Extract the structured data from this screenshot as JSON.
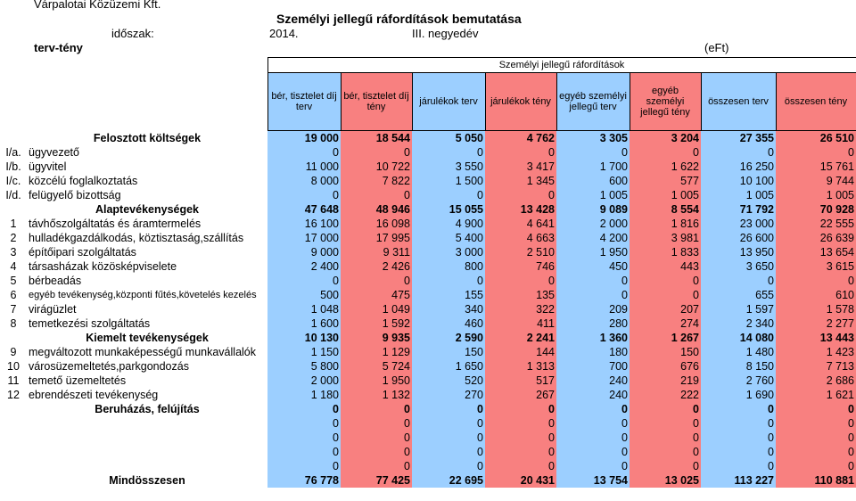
{
  "header": {
    "company": "Várpalotai Közüzemi Kft.",
    "title": "Személyi jellegű ráfordítások bemutatása",
    "period_label": "időszak:",
    "year": "2014.",
    "quarter": "III. negyedév",
    "plan_actual": "terv-tény",
    "unit": "(eFt)"
  },
  "table": {
    "caption": "Személyi jellegű ráfordítások",
    "columns": [
      "bér, tisztelet díj terv",
      "bér, tisztelet díj tény",
      "járulékok terv",
      "járulékok tény",
      "egyéb személyi jellegű terv",
      "egyéb személyi jellegű tény",
      "összesen terv",
      "összesen tény"
    ],
    "rows": [
      {
        "code": "",
        "label": "Felosztott költségek",
        "kind": "sec",
        "values": [
          "19 000",
          "18 544",
          "5 050",
          "4 762",
          "3 305",
          "3 204",
          "27 355",
          "26 510"
        ]
      },
      {
        "code": "I/a.",
        "label": "ügyvezető",
        "kind": "",
        "values": [
          "0",
          "0",
          "0",
          "0",
          "0",
          "0",
          "0",
          "0"
        ]
      },
      {
        "code": "I/b.",
        "label": "ügyvitel",
        "kind": "",
        "values": [
          "11 000",
          "10 722",
          "3 550",
          "3 417",
          "1 700",
          "1 622",
          "16 250",
          "15 761"
        ]
      },
      {
        "code": "I/c.",
        "label": "közcélú foglalkoztatás",
        "kind": "",
        "values": [
          "8 000",
          "7 822",
          "1 500",
          "1 345",
          "600",
          "577",
          "10 100",
          "9 744"
        ]
      },
      {
        "code": "I/d.",
        "label": "felügyelő bizottság",
        "kind": "",
        "values": [
          "0",
          "0",
          "0",
          "0",
          "1 005",
          "1 005",
          "1 005",
          "1 005"
        ]
      },
      {
        "code": "",
        "label": "Alaptevékenységek",
        "kind": "sec",
        "values": [
          "47 648",
          "48 946",
          "15 055",
          "13 428",
          "9 089",
          "8 554",
          "71 792",
          "70 928"
        ]
      },
      {
        "code": "1",
        "label": "távhőszolgáltatás és áramtermelés",
        "kind": "",
        "values": [
          "16 100",
          "16 098",
          "4 900",
          "4 641",
          "2 000",
          "1 816",
          "23 000",
          "22 555"
        ]
      },
      {
        "code": "2",
        "label": "hulladékgazdálkodás, köztisztaság,szállítás",
        "kind": "",
        "values": [
          "17 000",
          "17 995",
          "5 400",
          "4 663",
          "4 200",
          "3 981",
          "26 600",
          "26 639"
        ]
      },
      {
        "code": "3",
        "label": "építőipari szolgáltatás",
        "kind": "",
        "values": [
          "9 000",
          "9 311",
          "3 000",
          "2 510",
          "1 950",
          "1 833",
          "13 950",
          "13 654"
        ]
      },
      {
        "code": "4",
        "label": "társasházak közösképviselete",
        "kind": "",
        "values": [
          "2 400",
          "2 426",
          "800",
          "746",
          "450",
          "443",
          "3 650",
          "3 615"
        ]
      },
      {
        "code": "5",
        "label": "bérbeadás",
        "kind": "",
        "values": [
          "0",
          "0",
          "0",
          "0",
          "0",
          "0",
          "0",
          "0"
        ]
      },
      {
        "code": "6",
        "label": "egyéb tevékenység,központi fűtés,követelés kezelés",
        "kind": "small",
        "values": [
          "500",
          "475",
          "155",
          "135",
          "0",
          "0",
          "655",
          "610"
        ]
      },
      {
        "code": "7",
        "label": "virágüzlet",
        "kind": "",
        "values": [
          "1 048",
          "1 049",
          "340",
          "322",
          "209",
          "207",
          "1 597",
          "1 578"
        ]
      },
      {
        "code": "8",
        "label": "temetkezési szolgáltatás",
        "kind": "",
        "values": [
          "1 600",
          "1 592",
          "460",
          "411",
          "280",
          "274",
          "2 340",
          "2 277"
        ]
      },
      {
        "code": "",
        "label": "Kiemelt tevékenységek",
        "kind": "sec",
        "values": [
          "10 130",
          "9 935",
          "2 590",
          "2 241",
          "1 360",
          "1 267",
          "14 080",
          "13 443"
        ]
      },
      {
        "code": "9",
        "label": "megváltozott munkaképességű munkavállalók",
        "kind": "",
        "values": [
          "1 150",
          "1 129",
          "150",
          "144",
          "180",
          "150",
          "1 480",
          "1 423"
        ]
      },
      {
        "code": "10",
        "label": "városüzemeltetés,parkgondozás",
        "kind": "",
        "values": [
          "5 800",
          "5 724",
          "1 650",
          "1 313",
          "700",
          "676",
          "8 150",
          "7 713"
        ]
      },
      {
        "code": "11",
        "label": "temető üzemeltetés",
        "kind": "",
        "values": [
          "2 000",
          "1 950",
          "520",
          "517",
          "240",
          "219",
          "2 760",
          "2 686"
        ]
      },
      {
        "code": "12",
        "label": "ebrendészeti tevékenység",
        "kind": "",
        "values": [
          "1 180",
          "1 132",
          "270",
          "267",
          "240",
          "222",
          "1 690",
          "1 621"
        ]
      },
      {
        "code": "",
        "label": "Beruházás, felújítás",
        "kind": "sec",
        "values": [
          "0",
          "0",
          "0",
          "0",
          "0",
          "0",
          "0",
          "0"
        ]
      },
      {
        "code": "",
        "label": "",
        "kind": "",
        "values": [
          "0",
          "0",
          "0",
          "0",
          "0",
          "0",
          "0",
          "0"
        ]
      },
      {
        "code": "",
        "label": "",
        "kind": "",
        "values": [
          "0",
          "0",
          "0",
          "0",
          "0",
          "0",
          "0",
          "0"
        ]
      },
      {
        "code": "",
        "label": "",
        "kind": "",
        "values": [
          "0",
          "0",
          "0",
          "0",
          "0",
          "0",
          "0",
          "0"
        ]
      },
      {
        "code": "",
        "label": "",
        "kind": "",
        "values": [
          "0",
          "0",
          "0",
          "0",
          "0",
          "0",
          "0",
          "0"
        ]
      },
      {
        "code": "",
        "label": "Mindösszesen",
        "kind": "sec",
        "values": [
          "76 778",
          "77 425",
          "22 695",
          "20 431",
          "13 754",
          "13 025",
          "113 227",
          "110 881"
        ]
      }
    ]
  },
  "colors": {
    "plan": "#9ccfff",
    "actual": "#f88080"
  }
}
